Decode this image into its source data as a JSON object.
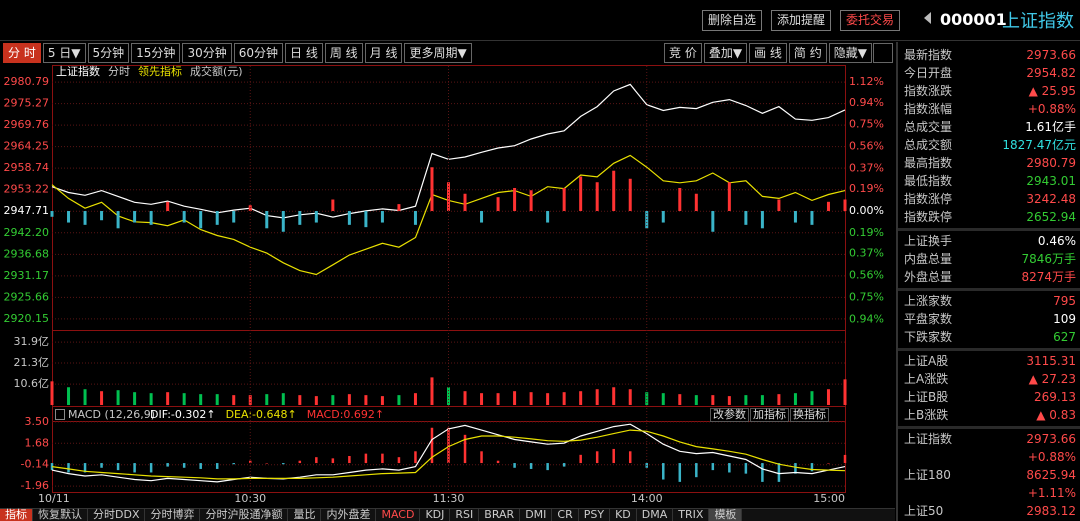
{
  "header": {
    "buttons": [
      "删除自选",
      "添加提醒",
      "委托交易"
    ],
    "code": "000001",
    "name": "上证指数"
  },
  "toolbar": {
    "periods": [
      "分 时",
      "5 日▼",
      "5分钟",
      "15分钟",
      "30分钟",
      "60分钟",
      "日 线",
      "周 线",
      "月 线",
      "更多周期▼"
    ],
    "tools": [
      "竞 价",
      "叠加▼",
      "画 线",
      "简 约",
      "隐藏▼"
    ]
  },
  "chart_data": [
    {
      "type": "line",
      "x": [
        0,
        5,
        10,
        15,
        20,
        25,
        30,
        35,
        40,
        45,
        50,
        55,
        60,
        65,
        70,
        75,
        80,
        85,
        90,
        95,
        100,
        105,
        110,
        115,
        120,
        125,
        130,
        135,
        140,
        145,
        150,
        155,
        160,
        165,
        170,
        175,
        180,
        185,
        190,
        195,
        200,
        205,
        210,
        215,
        220,
        225,
        230,
        235,
        240
      ],
      "xlim": [
        0,
        240
      ],
      "ylim": [
        2917.3,
        2982.6
      ],
      "yticks": [
        2980.79,
        2975.27,
        2969.76,
        2964.25,
        2958.74,
        2953.22,
        2947.71,
        {
          "value": 2942.2,
          "label": "2942.20"
        },
        2936.68,
        2931.17,
        2925.66,
        2920.15
      ],
      "y2lim": [
        -1.033,
        1.181
      ],
      "y2ticks": [
        {
          "value": 1.12,
          "label": "1.12%"
        },
        {
          "value": 0.94,
          "label": "0.94%"
        },
        {
          "value": 0.75,
          "label": "0.75%"
        },
        {
          "value": 0.56,
          "label": "0.56%"
        },
        {
          "value": 0.37,
          "label": "0.37%"
        },
        {
          "value": 0.19,
          "label": "0.19%"
        },
        {
          "value": 0,
          "label": "0.00%"
        },
        {
          "value": -0.19,
          "label": "0.19%"
        },
        {
          "value": -0.37,
          "label": "0.37%"
        },
        {
          "value": -0.56,
          "label": "0.56%"
        },
        {
          "value": -0.75,
          "label": "0.75%"
        },
        {
          "value": -0.94,
          "label": "0.94%"
        }
      ],
      "grid": true,
      "series": [
        {
          "name": "上证指数",
          "color": "#ffffff",
          "values": [
            2954.0,
            2952.5,
            2951.8,
            2953.0,
            2951.5,
            2950.0,
            2949.5,
            2950.3,
            2949.0,
            2948.2,
            2947.3,
            2948.0,
            2948.5,
            2946.6,
            2946.0,
            2946.8,
            2947.2,
            2946.2,
            2947.1,
            2947.8,
            2948.3,
            2947.9,
            2949.0,
            2962.5,
            2961.0,
            2961.6,
            2962.8,
            2963.9,
            2964.5,
            2966.2,
            2967.5,
            2968.3,
            2972.0,
            2974.5,
            2978.5,
            2980.2,
            2975.0,
            2973.5,
            2974.3,
            2974.0,
            2975.6,
            2976.3,
            2974.8,
            2972.8,
            2974.5,
            2971.3,
            2971.0,
            2971.7,
            2973.66
          ]
        },
        {
          "name": "领先指标",
          "color": "#e8e000",
          "values": [
            2954.5,
            2951.0,
            2948.5,
            2950.0,
            2946.5,
            2945.0,
            2944.8,
            2944.0,
            2945.5,
            2943.0,
            2941.5,
            2940.5,
            2938.5,
            2937.0,
            2934.5,
            2932.5,
            2931.5,
            2934.0,
            2936.5,
            2938.0,
            2939.5,
            2938.5,
            2941.0,
            2952.0,
            2950.5,
            2949.5,
            2951.0,
            2952.5,
            2953.0,
            2951.5,
            2954.0,
            2953.5,
            2957.0,
            2956.5,
            2960.0,
            2962.0,
            2959.0,
            2955.5,
            2955.0,
            2955.5,
            2957.5,
            2955.0,
            2955.5,
            2951.5,
            2951.0,
            2952.5,
            2950.5,
            2952.0,
            2953.0
          ]
        },
        {
          "type": "bar",
          "axis": "y2",
          "values": [
            -0.05,
            -0.1,
            -0.12,
            -0.08,
            -0.15,
            -0.1,
            -0.12,
            0.08,
            -0.1,
            -0.15,
            -0.12,
            -0.1,
            0.05,
            -0.15,
            -0.18,
            -0.12,
            -0.1,
            0.1,
            -0.12,
            -0.14,
            -0.1,
            0.06,
            -0.12,
            0.38,
            0.25,
            0.15,
            -0.1,
            0.12,
            0.2,
            0.18,
            -0.1,
            0.2,
            0.3,
            0.25,
            0.35,
            0.28,
            -0.15,
            -0.1,
            0.2,
            0.15,
            -0.18,
            0.25,
            -0.12,
            -0.15,
            0.1,
            -0.1,
            -0.12,
            0.08,
            0.1
          ]
        }
      ],
      "legend_extra": [
        "分时",
        "成交额(元)"
      ],
      "up_color": "#ff3232",
      "down_color": "#3ab4c8",
      "label_colors": {
        "up": "#ff4a4a",
        "flat": "#ffffff",
        "down": "#33cc33"
      }
    },
    {
      "type": "bar",
      "x": [
        0,
        5,
        10,
        15,
        20,
        25,
        30,
        35,
        40,
        45,
        50,
        55,
        60,
        65,
        70,
        75,
        80,
        85,
        90,
        95,
        100,
        105,
        110,
        115,
        120,
        125,
        130,
        135,
        140,
        145,
        150,
        155,
        160,
        165,
        170,
        175,
        180,
        185,
        190,
        195,
        200,
        205,
        210,
        215,
        220,
        225,
        230,
        235,
        240
      ],
      "xlim": [
        0,
        240
      ],
      "ylim": [
        0,
        36.5
      ],
      "yticks": [
        {
          "value": 31.9,
          "label": "31.9亿"
        },
        {
          "value": 21.3,
          "label": "21.3亿"
        },
        {
          "value": 10.6,
          "label": "10.6亿"
        }
      ],
      "grid": true,
      "values": [
        12,
        9,
        8,
        7,
        7.5,
        6.5,
        6,
        6.5,
        6,
        5.5,
        5.5,
        5,
        5,
        5.5,
        6,
        5,
        4.5,
        5,
        5.5,
        5,
        4.5,
        5,
        6,
        14,
        9,
        7,
        6,
        6,
        7,
        6.5,
        6,
        6.5,
        7,
        8,
        9,
        8,
        6.5,
        6,
        5.5,
        5,
        5,
        4.5,
        5,
        5,
        5.5,
        6,
        7,
        8,
        13
      ],
      "up_color": "#ff3232",
      "down_color": "#00c050"
    },
    {
      "type": "macd",
      "title": "MACD (12,26,9)",
      "x": [
        0,
        5,
        10,
        15,
        20,
        25,
        30,
        35,
        40,
        45,
        50,
        55,
        60,
        65,
        70,
        75,
        80,
        85,
        90,
        95,
        100,
        105,
        110,
        115,
        120,
        125,
        130,
        135,
        140,
        145,
        150,
        155,
        160,
        165,
        170,
        175,
        180,
        185,
        190,
        195,
        200,
        205,
        210,
        215,
        220,
        225,
        230,
        235,
        240
      ],
      "xlim": [
        0,
        240
      ],
      "ylim": [
        -2.46,
        4.0
      ],
      "yticks": [
        {
          "value": 3.5,
          "label": "3.50"
        },
        1.68,
        -0.14,
        -1.96
      ],
      "xticks": [
        {
          "value": 0,
          "label": "10/11"
        },
        {
          "value": 60,
          "label": "10:30"
        },
        {
          "value": 120,
          "label": "11:30"
        },
        {
          "value": 180,
          "label": "14:00"
        },
        {
          "value": 240,
          "label": "15:00"
        }
      ],
      "series": [
        {
          "name": "DIF:-0.302↑",
          "color": "#ffffff",
          "values": [
            -0.6,
            -0.9,
            -1.1,
            -1,
            -1.2,
            -1.4,
            -1.5,
            -1.3,
            -1.4,
            -1.5,
            -1.6,
            -1.4,
            -1.2,
            -1.3,
            -1.35,
            -1.2,
            -1,
            -1,
            -0.8,
            -0.6,
            -0.5,
            -0.6,
            -0.3,
            2,
            2.9,
            3.2,
            2.8,
            2.4,
            2,
            1.8,
            1.6,
            1.7,
            2.3,
            2.7,
            3.1,
            3.3,
            2.5,
            1.6,
            1,
            0.8,
            0.9,
            0.6,
            0.3,
            -0.5,
            -0.9,
            -0.8,
            -0.9,
            -0.6,
            -0.302
          ]
        },
        {
          "name": "DEA:-0.648↑",
          "color": "#e8e000",
          "values": [
            -0.3,
            -0.5,
            -0.7,
            -0.8,
            -0.9,
            -1,
            -1.1,
            -1.15,
            -1.2,
            -1.25,
            -1.35,
            -1.35,
            -1.3,
            -1.3,
            -1.3,
            -1.3,
            -1.25,
            -1.2,
            -1.1,
            -1,
            -0.9,
            -0.85,
            -0.8,
            0.5,
            1.4,
            2,
            2.3,
            2.3,
            2.2,
            2.05,
            1.9,
            1.85,
            1.95,
            2.2,
            2.5,
            2.8,
            2.7,
            2.3,
            1.8,
            1.4,
            1.2,
            1,
            0.75,
            0.3,
            -0.1,
            -0.35,
            -0.55,
            -0.6,
            -0.648
          ]
        },
        {
          "name": "MACD:0.692↑",
          "color": "#ff3232",
          "type": "bar",
          "values": [
            -0.6,
            -0.8,
            -0.8,
            -0.4,
            -0.6,
            -0.8,
            -0.8,
            -0.3,
            -0.4,
            -0.5,
            -0.5,
            -0.1,
            0.2,
            0,
            -0.1,
            0.2,
            0.5,
            0.4,
            0.6,
            0.8,
            0.8,
            0.5,
            1,
            3,
            3,
            2.4,
            1,
            0.2,
            -0.4,
            -0.5,
            -0.6,
            -0.3,
            0.7,
            1,
            1.2,
            1,
            -0.4,
            -1.4,
            -1.6,
            -1.2,
            -0.6,
            -0.8,
            -0.9,
            -1.6,
            -1.6,
            -0.9,
            -0.7,
            0,
            0.692
          ]
        }
      ],
      "buttons": [
        "改参数",
        "加指标",
        "换指标"
      ],
      "down_color": "#3ab4c8",
      "grid": true
    }
  ],
  "quote_panel": {
    "groups": [
      [
        {
          "label": "最新指数",
          "value": "2973.66",
          "color": "#ff4a4a"
        },
        {
          "label": "今日开盘",
          "value": "2954.82",
          "color": "#ff4a4a"
        },
        {
          "label": "指数涨跌",
          "value": "▲ 25.95",
          "color": "#ff4a4a"
        },
        {
          "label": "指数涨幅",
          "value": "+0.88%",
          "color": "#ff4a4a"
        },
        {
          "label": "总成交量",
          "value": "1.61亿手",
          "color": "#ffffff"
        },
        {
          "label": "总成交额",
          "value": "1827.47亿元",
          "color": "#30e0e0"
        },
        {
          "label": "最高指数",
          "value": "2980.79",
          "color": "#ff4a4a"
        },
        {
          "label": "最低指数",
          "value": "2943.01",
          "color": "#33cc33"
        },
        {
          "label": "指数涨停",
          "value": "3242.48",
          "color": "#ff4a4a"
        },
        {
          "label": "指数跌停",
          "value": "2652.94",
          "color": "#33cc33"
        }
      ],
      [
        {
          "label": "上证换手",
          "value": "0.46%",
          "color": "#ffffff"
        },
        {
          "label": "内盘总量",
          "value": "7846万手",
          "color": "#33cc33"
        },
        {
          "label": "外盘总量",
          "value": "8274万手",
          "color": "#ff4a4a"
        }
      ],
      [
        {
          "label": "上涨家数",
          "value": "795",
          "color": "#ff4a4a"
        },
        {
          "label": "平盘家数",
          "value": "109",
          "color": "#ffffff"
        },
        {
          "label": "下跌家数",
          "value": "627",
          "color": "#33cc33"
        }
      ],
      [
        {
          "label": "上证A股",
          "value": "3115.31",
          "color": "#ff4a4a"
        },
        {
          "label": "上A涨跌",
          "value": "▲ 27.23",
          "color": "#ff4a4a"
        },
        {
          "label": "上证B股",
          "value": "269.13",
          "color": "#ff4a4a"
        },
        {
          "label": "上B涨跌",
          "value": "▲ 0.83",
          "color": "#ff4a4a"
        }
      ],
      [
        {
          "label": "上证指数",
          "value": "2973.66",
          "color": "#ff4a4a"
        },
        {
          "value": "+0.88%",
          "color": "#ff4a4a"
        },
        {
          "label": "上证180",
          "value": "8625.94",
          "color": "#ff4a4a"
        },
        {
          "value": "+1.11%",
          "color": "#ff4a4a"
        },
        {
          "label": "上证50",
          "value": "2983.12",
          "color": "#ff4a4a"
        }
      ]
    ]
  },
  "bottom_tabs": [
    "指标",
    "恢复默认",
    "分时DDX",
    "分时博弈",
    "分时沪股通净额",
    "量比",
    "内外盘差",
    "MACD",
    "KDJ",
    "RSI",
    "BRAR",
    "DMI",
    "CR",
    "PSY",
    "KD",
    "DMA",
    "TRIX",
    "模板"
  ]
}
